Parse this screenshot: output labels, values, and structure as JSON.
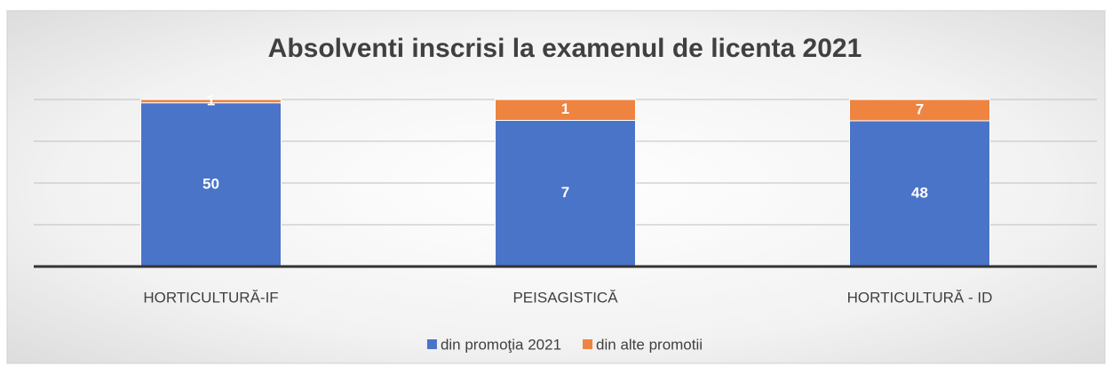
{
  "chart_data": {
    "type": "bar",
    "stacking": "percent",
    "title": "Absolventi inscrisi la examenul de licenta 2021",
    "categories": [
      "HORTICULTURĂ-IF",
      "PEISAGISTICĂ",
      "HORTICULTURĂ - ID"
    ],
    "series": [
      {
        "name": "din promoţia 2021",
        "color": "#4a74c8",
        "values": [
          50,
          7,
          48
        ]
      },
      {
        "name": "din alte promotii",
        "color": "#ee8440",
        "values": [
          1,
          1,
          7
        ]
      }
    ],
    "ylim": [
      0,
      100
    ],
    "yticks": [
      0,
      25,
      50,
      75,
      100
    ],
    "grid": true,
    "legend": "bottom"
  }
}
